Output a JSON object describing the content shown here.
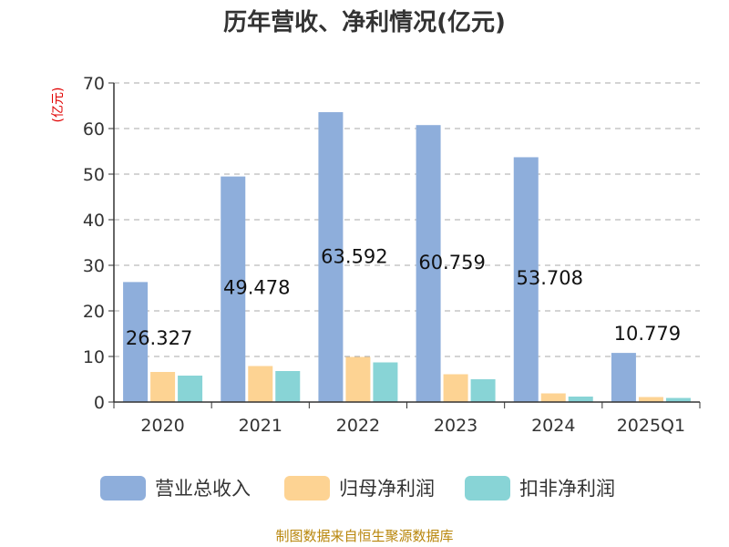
{
  "chart_data": {
    "type": "bar",
    "title": "历年营收、净利情况(亿元)",
    "ylabel": "(亿元)",
    "xlabel": "",
    "ylim": [
      0,
      70
    ],
    "yticks": [
      0,
      10,
      20,
      30,
      40,
      50,
      60,
      70
    ],
    "grid": true,
    "legend_position": "bottom",
    "categories": [
      "2020",
      "2021",
      "2022",
      "2023",
      "2024",
      "2025Q1"
    ],
    "series": [
      {
        "name": "营业总收入",
        "color": "#8eaedb",
        "values": [
          26.327,
          49.478,
          63.592,
          60.759,
          53.708,
          10.779
        ],
        "labels": [
          "26.327",
          "49.478",
          "63.592",
          "60.759",
          "53.708",
          "10.779"
        ]
      },
      {
        "name": "归母净利润",
        "color": "#fdd393",
        "values": [
          6.6,
          7.9,
          9.9,
          6.1,
          1.9,
          1.1
        ]
      },
      {
        "name": "扣非净利润",
        "color": "#88d4d6",
        "values": [
          5.8,
          6.8,
          8.7,
          5.0,
          1.2,
          0.9
        ]
      }
    ]
  },
  "footer": {
    "source": "制图数据来自恒生聚源数据库"
  }
}
